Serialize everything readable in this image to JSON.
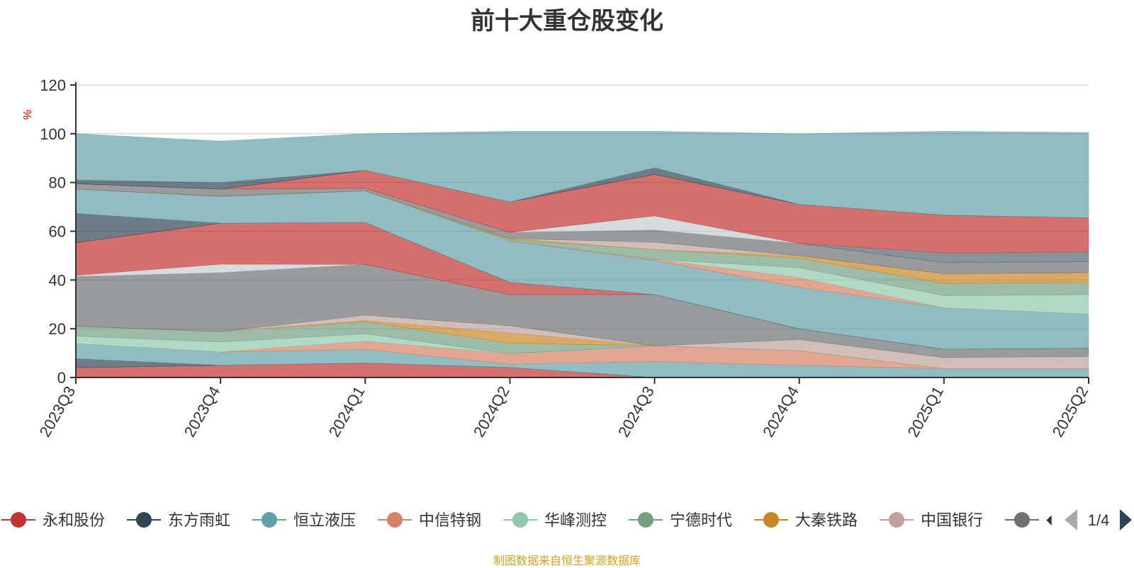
{
  "title": "前十大重仓股变化",
  "source_note": "制图数据来自恒生聚源数据库",
  "legend_page": "1/4",
  "chart_data": {
    "type": "area",
    "stacked": true,
    "ylabel": "%",
    "ylim": [
      0,
      120
    ],
    "yticks": [
      "0",
      "20",
      "40",
      "60",
      "80",
      "100",
      "120"
    ],
    "categories": [
      "2023Q3",
      "2023Q4",
      "2024Q1",
      "2024Q2",
      "2024Q3",
      "2024Q4",
      "2025Q1",
      "2025Q2"
    ],
    "legend_visible": [
      "永和股份",
      "东方雨虹",
      "恒立液压",
      "中信特钢",
      "华峰测控",
      "宁德时代",
      "大秦铁路",
      "中国银行",
      "🞀"
    ],
    "legend_colors": [
      "#c23531",
      "#2f4554",
      "#61a0a8",
      "#d48265",
      "#91c7ae",
      "#749f83",
      "#ca8622",
      "#bda29a",
      "#6e7074"
    ],
    "series": [
      {
        "name": "永和股份",
        "color": "#c23531",
        "values": [
          4.0,
          5.0,
          5.9,
          4.1,
          0.0,
          0.0,
          0.0,
          0.0
        ]
      },
      {
        "name": "东方雨虹",
        "color": "#2f4554",
        "values": [
          3.7,
          0.0,
          0.0,
          0.0,
          0.0,
          0.0,
          0.0,
          0.0
        ]
      },
      {
        "name": "恒立液压",
        "color": "#61a0a8",
        "values": [
          6.2,
          5.5,
          5.6,
          1.4,
          6.5,
          5.0,
          3.6,
          3.6
        ]
      },
      {
        "name": "中信特钢",
        "color": "#d48265",
        "values": [
          0.0,
          0.0,
          3.4,
          4.3,
          6.5,
          6.0,
          0.0,
          0.0
        ]
      },
      {
        "name": "华峰测控",
        "color": "#91c7ae",
        "values": [
          3.1,
          4.1,
          3.0,
          0.0,
          0.0,
          0.0,
          0.0,
          0.0
        ]
      },
      {
        "name": "宁德时代",
        "color": "#749f83",
        "values": [
          4.0,
          4.2,
          5.0,
          4.3,
          0.0,
          0.0,
          0.0,
          0.0
        ]
      },
      {
        "name": "大秦铁路",
        "color": "#ca8622",
        "values": [
          0.0,
          0.0,
          0.5,
          4.2,
          0.0,
          0.0,
          0.0,
          0.0
        ]
      },
      {
        "name": "中国银行",
        "color": "#bda29a",
        "values": [
          0.0,
          0.0,
          2.2,
          2.9,
          0.0,
          4.6,
          4.6,
          5.0
        ]
      },
      {
        "name": "",
        "color": "#6e7074",
        "values": [
          20.4,
          24.2,
          20.8,
          12.8,
          21.0,
          4.4,
          3.4,
          3.4
        ]
      },
      {
        "name": "",
        "color": "#546570",
        "values": [
          0.0,
          0.0,
          0.0,
          0.0,
          0.0,
          0.0,
          0.0,
          0.0
        ]
      },
      {
        "name": "",
        "color": "#c4ccd3",
        "values": [
          0.5,
          3.5,
          0.0,
          0.0,
          0.0,
          0.0,
          0.0,
          0.0
        ]
      },
      {
        "name": "",
        "color": "#c23531",
        "values": [
          13.4,
          16.8,
          17.2,
          5.0,
          0.0,
          0.0,
          0.0,
          0.0
        ]
      },
      {
        "name": "",
        "color": "#2f4554",
        "values": [
          12.0,
          0.0,
          0.0,
          0.0,
          0.0,
          0.0,
          0.0,
          0.0
        ]
      },
      {
        "name": "",
        "color": "#61a0a8",
        "values": [
          10.0,
          11.0,
          13.0,
          17.0,
          14.0,
          17.0,
          17.0,
          14.0
        ]
      },
      {
        "name": "",
        "color": "#d48265",
        "values": [
          0.0,
          0.0,
          0.0,
          0.0,
          0.5,
          4.0,
          0.0,
          0.0
        ]
      },
      {
        "name": "",
        "color": "#91c7ae",
        "values": [
          0.0,
          0.0,
          0.0,
          0.0,
          0.0,
          4.0,
          5.0,
          8.0
        ]
      },
      {
        "name": "",
        "color": "#749f83",
        "values": [
          0.0,
          0.0,
          0.0,
          0.5,
          4.0,
          4.0,
          5.0,
          5.0
        ]
      },
      {
        "name": "",
        "color": "#ca8622",
        "values": [
          0.0,
          0.0,
          0.0,
          0.5,
          0.0,
          1.0,
          4.0,
          4.0
        ]
      },
      {
        "name": "",
        "color": "#bda29a",
        "values": [
          0.0,
          0.0,
          0.0,
          0.0,
          3.0,
          0.0,
          0.0,
          0.0
        ]
      },
      {
        "name": "",
        "color": "#6e7074",
        "values": [
          2.2,
          3.0,
          1.0,
          2.5,
          5.0,
          5.0,
          4.5,
          4.5
        ]
      },
      {
        "name": "",
        "color": "#546570",
        "values": [
          0.0,
          0.0,
          0.0,
          0.0,
          0.0,
          0.0,
          4.0,
          4.0
        ]
      },
      {
        "name": "",
        "color": "#c4ccd3",
        "values": [
          0.0,
          0.0,
          0.0,
          0.0,
          5.8,
          0.0,
          0.0,
          0.0
        ]
      },
      {
        "name": "",
        "color": "#c23531",
        "values": [
          0.0,
          0.0,
          7.4,
          12.5,
          17.0,
          16.0,
          15.5,
          14.0
        ]
      },
      {
        "name": "",
        "color": "#2f4554",
        "values": [
          1.5,
          2.7,
          0.0,
          0.0,
          2.7,
          0.0,
          0.0,
          0.0
        ]
      },
      {
        "name": "",
        "color": "#61a0a8",
        "values": [
          19.0,
          17.0,
          15.0,
          29.0,
          15.0,
          29.0,
          34.4,
          35.0
        ]
      }
    ]
  }
}
